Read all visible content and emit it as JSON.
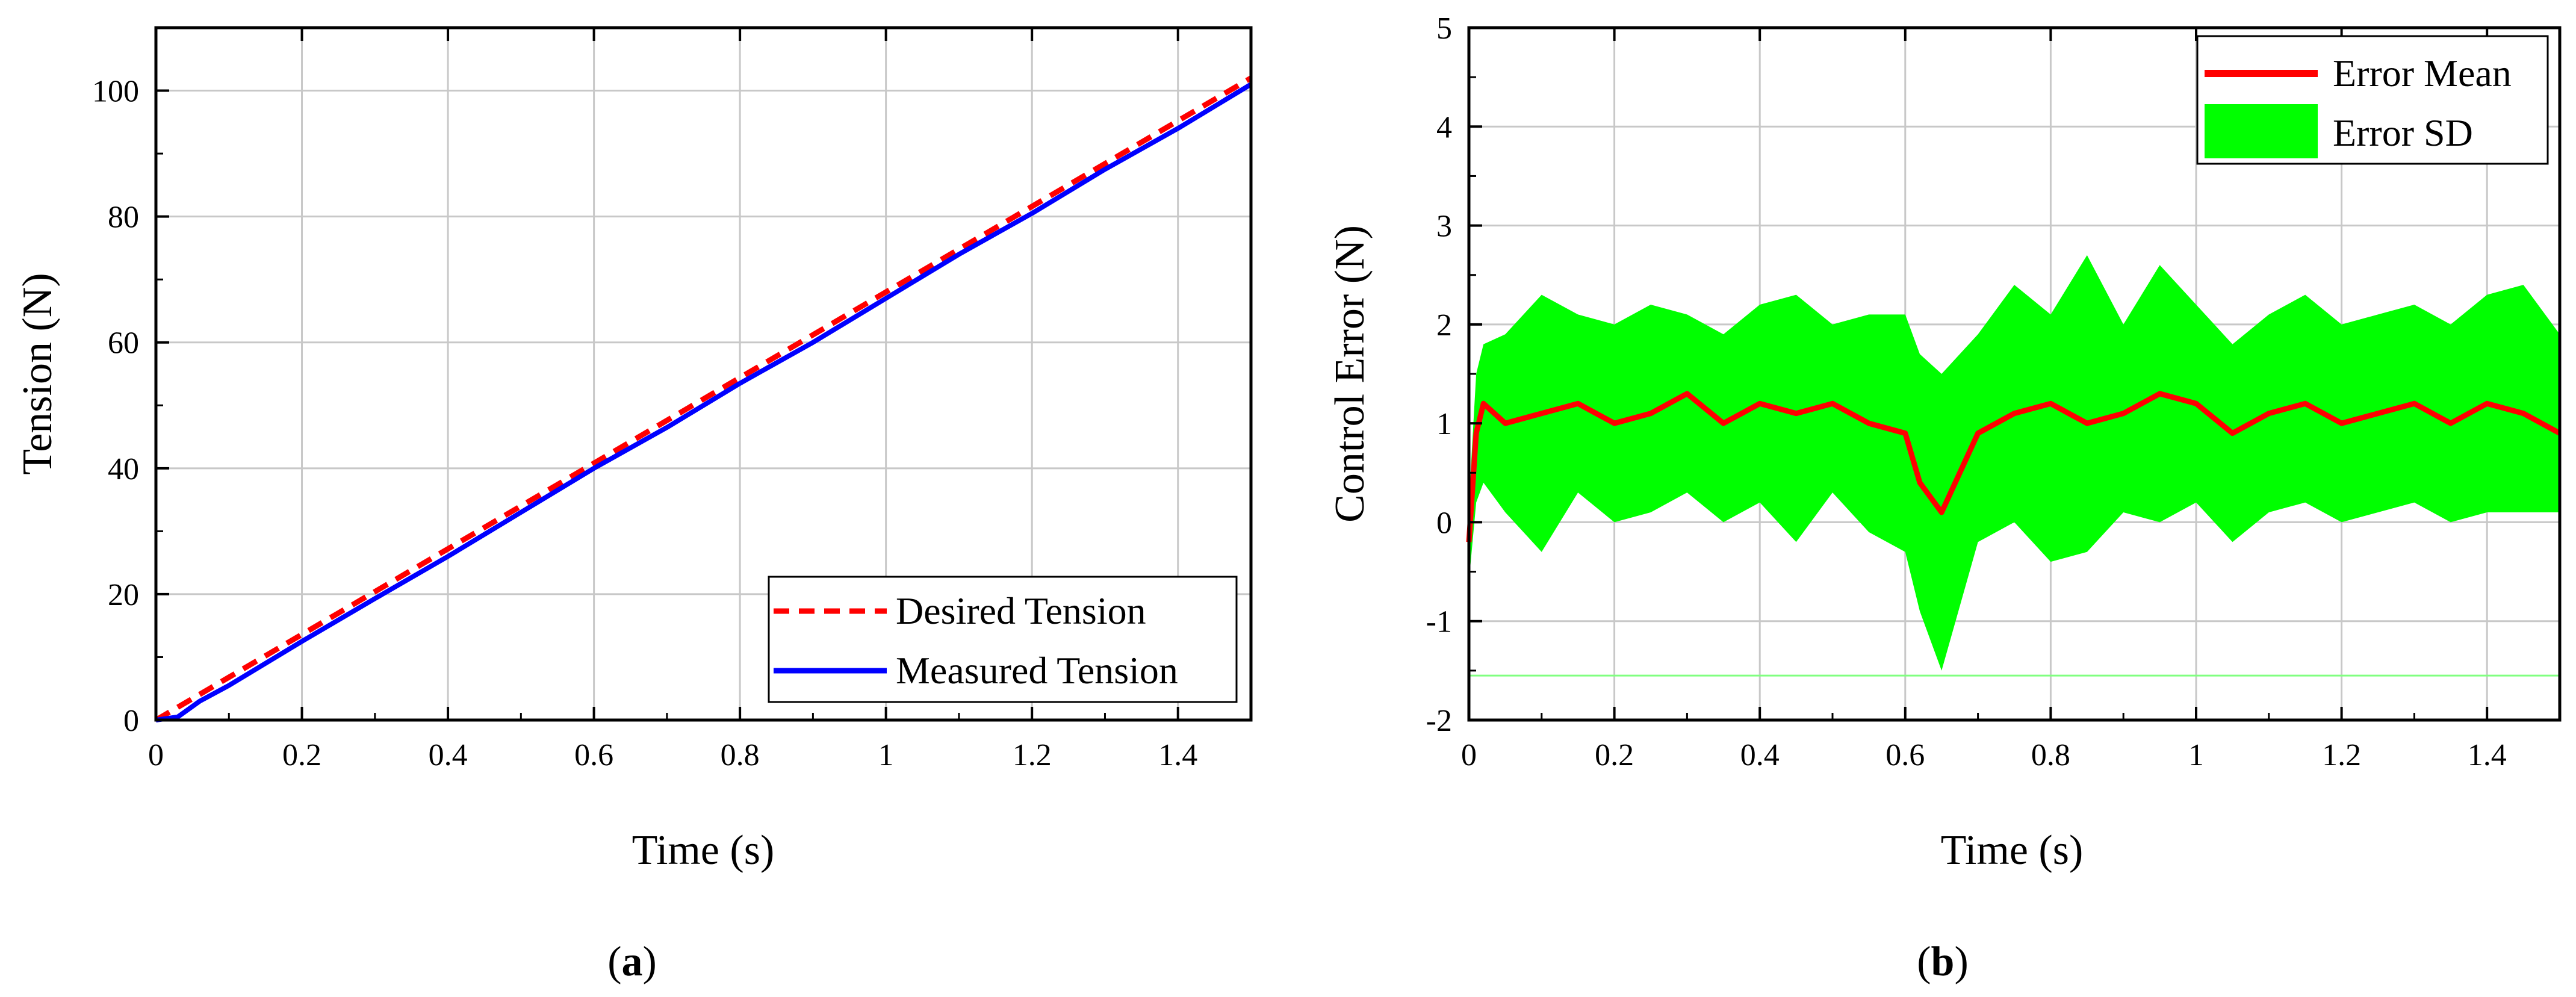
{
  "chart_data": [
    {
      "type": "line",
      "panel_label": "a",
      "title": "",
      "xlabel": "Time (s)",
      "ylabel": "Tension (N)",
      "xlim": [
        0,
        1.5
      ],
      "ylim": [
        0,
        110
      ],
      "xticks": [
        0,
        0.2,
        0.4,
        0.6,
        0.8,
        1,
        1.2,
        1.4
      ],
      "xtick_labels": [
        "0",
        "0.2",
        "0.4",
        "0.6",
        "0.8",
        "1",
        "1.2",
        "1.4"
      ],
      "yticks": [
        0,
        20,
        40,
        60,
        80,
        100
      ],
      "ytick_labels": [
        "0",
        "20",
        "40",
        "60",
        "80",
        "100"
      ],
      "grid": true,
      "legend_position": "bottom-right",
      "series": [
        {
          "name": "Desired Tension",
          "color": "#ff0000",
          "style": "dashed",
          "x": [
            0,
            1.5
          ],
          "y": [
            0,
            102
          ]
        },
        {
          "name": "Measured Tension",
          "color": "#0000ff",
          "style": "solid",
          "x": [
            0,
            0.03,
            0.06,
            0.1,
            0.2,
            0.3,
            0.4,
            0.5,
            0.6,
            0.7,
            0.8,
            0.9,
            1.0,
            1.1,
            1.2,
            1.3,
            1.4,
            1.5
          ],
          "y": [
            0,
            0.5,
            3,
            5.5,
            12.5,
            19.3,
            26,
            33,
            40,
            46.5,
            53.5,
            60,
            67,
            74,
            80.5,
            87.5,
            94,
            101
          ]
        }
      ]
    },
    {
      "type": "line",
      "panel_label": "b",
      "title": "",
      "xlabel": "Time (s)",
      "ylabel": "Control Error (N)",
      "xlim": [
        0,
        1.5
      ],
      "ylim": [
        -2,
        5
      ],
      "xticks": [
        0,
        0.2,
        0.4,
        0.6,
        0.8,
        1,
        1.2,
        1.4
      ],
      "xtick_labels": [
        "0",
        "0.2",
        "0.4",
        "0.6",
        "0.8",
        "1",
        "1.2",
        "1.4"
      ],
      "yticks": [
        -2,
        -1,
        0,
        1,
        2,
        3,
        4,
        5
      ],
      "ytick_labels": [
        "-2",
        "-1",
        "0",
        "1",
        "2",
        "3",
        "4",
        "5"
      ],
      "grid": true,
      "legend_position": "top-right",
      "series": [
        {
          "name": "Error Mean",
          "color": "#ff0000",
          "style": "solid",
          "x": [
            0,
            0.01,
            0.02,
            0.05,
            0.1,
            0.15,
            0.2,
            0.25,
            0.3,
            0.35,
            0.4,
            0.45,
            0.5,
            0.55,
            0.6,
            0.62,
            0.65,
            0.7,
            0.75,
            0.8,
            0.85,
            0.9,
            0.95,
            1.0,
            1.05,
            1.1,
            1.15,
            1.2,
            1.25,
            1.3,
            1.35,
            1.4,
            1.45,
            1.5
          ],
          "y": [
            -0.2,
            0.9,
            1.2,
            1.0,
            1.1,
            1.2,
            1.0,
            1.1,
            1.3,
            1.0,
            1.2,
            1.1,
            1.2,
            1.0,
            0.9,
            0.4,
            0.1,
            0.9,
            1.1,
            1.2,
            1.0,
            1.1,
            1.3,
            1.2,
            0.9,
            1.1,
            1.2,
            1.0,
            1.1,
            1.2,
            1.0,
            1.2,
            1.1,
            0.9
          ]
        },
        {
          "name": "Error SD",
          "color": "#00ff00",
          "style": "band",
          "x": [
            0,
            0.01,
            0.02,
            0.05,
            0.1,
            0.15,
            0.2,
            0.25,
            0.3,
            0.35,
            0.4,
            0.45,
            0.5,
            0.55,
            0.6,
            0.62,
            0.65,
            0.7,
            0.75,
            0.8,
            0.85,
            0.9,
            0.95,
            1.0,
            1.05,
            1.1,
            1.15,
            1.2,
            1.25,
            1.3,
            1.35,
            1.4,
            1.45,
            1.5
          ],
          "upper": [
            0.2,
            1.5,
            1.8,
            1.9,
            2.3,
            2.1,
            2.0,
            2.2,
            2.1,
            1.9,
            2.2,
            2.3,
            2.0,
            2.1,
            2.1,
            1.7,
            1.5,
            1.9,
            2.4,
            2.1,
            2.7,
            2.0,
            2.6,
            2.2,
            1.8,
            2.1,
            2.3,
            2.0,
            2.1,
            2.2,
            2.0,
            2.3,
            2.4,
            1.9
          ],
          "lower": [
            -0.6,
            0.2,
            0.4,
            0.1,
            -0.3,
            0.3,
            0.0,
            0.1,
            0.3,
            0.0,
            0.2,
            -0.2,
            0.3,
            -0.1,
            -0.3,
            -0.9,
            -1.5,
            -0.2,
            0.0,
            -0.4,
            -0.3,
            0.1,
            0.0,
            0.2,
            -0.2,
            0.1,
            0.2,
            0.0,
            0.1,
            0.2,
            0.0,
            0.1,
            0.1,
            0.1
          ]
        }
      ],
      "reference_line": {
        "y": -1.55,
        "color": "#80ff80"
      }
    }
  ]
}
